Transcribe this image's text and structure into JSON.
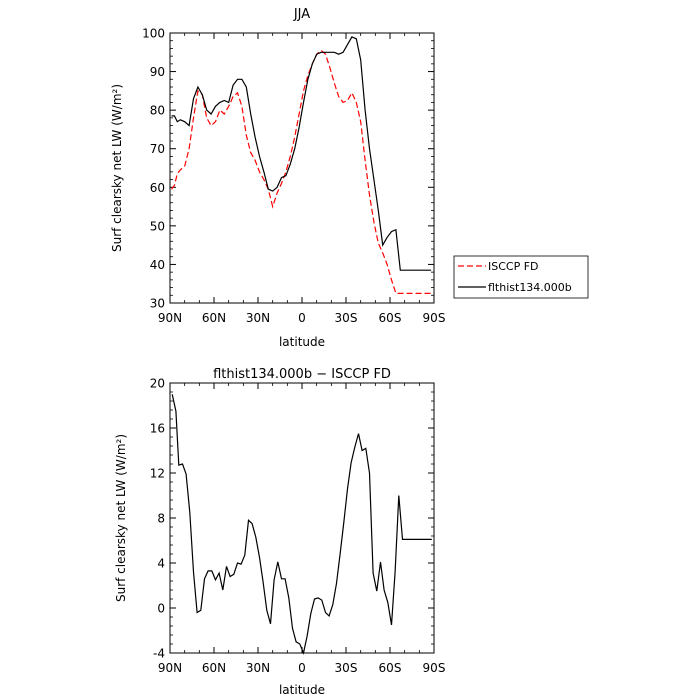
{
  "chart_data": [
    {
      "type": "line",
      "title": "JJA",
      "xlabel": "latitude",
      "ylabel": "Surf clearsky net LW (W/m²)",
      "xlim": [
        90,
        -90
      ],
      "ylim": [
        30,
        100
      ],
      "xticks": [
        90,
        60,
        30,
        0,
        -30,
        -60,
        -90
      ],
      "xtick_labels": [
        "90N",
        "60N",
        "30N",
        "0",
        "30S",
        "60S",
        "90S"
      ],
      "yticks": [
        30,
        40,
        50,
        60,
        70,
        80,
        90,
        100
      ],
      "legend_placement": "right",
      "series": [
        {
          "name": "ISCCP FD",
          "color": "#ff0000",
          "dashed": true,
          "x": [
            89,
            87,
            85,
            83,
            80,
            77,
            74,
            71,
            68,
            65,
            62,
            59,
            56,
            53,
            50,
            47,
            44,
            41,
            38,
            35,
            32,
            29,
            26,
            23,
            20,
            17,
            14,
            11,
            8,
            5,
            2,
            -1,
            -4,
            -7,
            -10,
            -13,
            -16,
            -19,
            -22,
            -25,
            -28,
            -31,
            -34,
            -37,
            -40,
            -43,
            -46,
            -49,
            -52,
            -55,
            -58,
            -61,
            -64,
            -67,
            -70,
            -73,
            -76,
            -79,
            -82,
            -85,
            -88,
            -89
          ],
          "y": [
            59.5,
            60.5,
            63.5,
            64.5,
            65.5,
            70,
            78,
            85,
            84,
            78,
            76,
            77,
            80,
            79,
            81,
            83.5,
            84.5,
            81,
            73.5,
            69,
            67,
            64,
            62,
            59.5,
            55,
            58.5,
            61,
            64,
            68,
            73,
            79,
            85,
            89,
            92,
            94.5,
            95.5,
            94.5,
            91,
            87,
            83.5,
            82,
            82.5,
            84.5,
            82,
            77,
            67,
            58,
            51,
            45.5,
            43,
            40,
            36,
            32.5,
            32.5,
            32.5,
            32.5,
            32.5,
            32.5,
            32.5,
            32.5,
            32.5,
            32.5
          ]
        },
        {
          "name": "flthist134.000b",
          "color": "#000000",
          "dashed": false,
          "x": [
            89,
            87,
            85,
            83,
            80,
            77,
            74,
            71,
            68,
            65,
            62,
            59,
            56,
            53,
            50,
            47,
            44,
            41,
            38,
            35,
            32,
            29,
            26,
            23,
            20,
            17,
            14,
            11,
            8,
            5,
            2,
            -1,
            -4,
            -7,
            -10,
            -13,
            -16,
            -19,
            -22,
            -25,
            -28,
            -31,
            -34,
            -37,
            -40,
            -43,
            -46,
            -49,
            -52,
            -55,
            -58,
            -61,
            -64,
            -67,
            -70,
            -73,
            -76,
            -79,
            -82,
            -85,
            -88
          ],
          "y": [
            78.5,
            78.5,
            77,
            77.5,
            77,
            76,
            83,
            86,
            84,
            80,
            79,
            81,
            82,
            82.5,
            82,
            86.5,
            88,
            88,
            86,
            79,
            73,
            68,
            64,
            59.5,
            59,
            60,
            62.5,
            63,
            66,
            70,
            75.5,
            82,
            88,
            92,
            94.5,
            95,
            95,
            95,
            95,
            94.5,
            95,
            97,
            99,
            98.5,
            93,
            80,
            70,
            62,
            54,
            45,
            47,
            48.5,
            49,
            38.5,
            38.5,
            38.5,
            38.5,
            38.5,
            38.5,
            38.5,
            38.5
          ]
        }
      ]
    },
    {
      "type": "line",
      "title": "flthist134.000b − ISCCP FD",
      "xlabel": "latitude",
      "ylabel": "Surf clearsky net LW (W/m²)",
      "xlim": [
        90,
        -90
      ],
      "ylim": [
        -4,
        20
      ],
      "xticks": [
        90,
        60,
        30,
        0,
        -30,
        -60,
        -90
      ],
      "xtick_labels": [
        "90N",
        "60N",
        "30N",
        "0",
        "30S",
        "60S",
        "90S"
      ],
      "yticks": [
        -4,
        0,
        4,
        8,
        12,
        16,
        20
      ],
      "series": [
        {
          "color": "#000000",
          "dashed": false,
          "x": [
            88.5,
            86,
            84,
            81.5,
            79,
            76.5,
            74,
            71.5,
            69,
            66.5,
            64,
            61.5,
            59,
            56.5,
            54,
            51.5,
            49,
            46.5,
            44,
            41.5,
            39,
            36.5,
            34,
            31.5,
            29,
            26.5,
            24,
            21.5,
            19,
            16.5,
            14,
            11.5,
            9,
            6.5,
            4,
            1.5,
            -1,
            -3.5,
            -6,
            -8.5,
            -11,
            -13.5,
            -16,
            -18.5,
            -21,
            -23.5,
            -26,
            -28.5,
            -31,
            -33.5,
            -36,
            -38.5,
            -41,
            -43.5,
            -46,
            -48.5,
            -51,
            -53.5,
            -56,
            -58.5,
            -61,
            -63.5,
            -66,
            -68.5,
            -71,
            -73.5,
            -76,
            -78.5,
            -81,
            -83.5,
            -86,
            -88.5
          ],
          "y": [
            19,
            17.5,
            12.7,
            12.8,
            11.9,
            8.5,
            3.2,
            -0.4,
            -0.2,
            2.6,
            3.3,
            3.3,
            2.5,
            3.1,
            1.6,
            3.7,
            2.8,
            3.0,
            4.0,
            3.9,
            4.7,
            7.8,
            7.5,
            6.3,
            4.5,
            2.3,
            -0.2,
            -1.4,
            2.5,
            4.1,
            2.6,
            2.6,
            0.9,
            -1.8,
            -3.0,
            -3.2,
            -4.0,
            -2.5,
            -0.5,
            0.8,
            0.9,
            0.7,
            -0.4,
            -0.7,
            0.3,
            2.2,
            4.8,
            7.6,
            10.6,
            12.9,
            14.3,
            15.5,
            14.0,
            14.2,
            12.0,
            3.1,
            1.5,
            4.1,
            1.6,
            0.5,
            -1.5,
            3.2,
            10.0,
            6.1,
            6.1,
            6.1,
            6.1,
            6.1,
            6.1,
            6.1,
            6.1,
            6.1
          ]
        }
      ]
    }
  ]
}
